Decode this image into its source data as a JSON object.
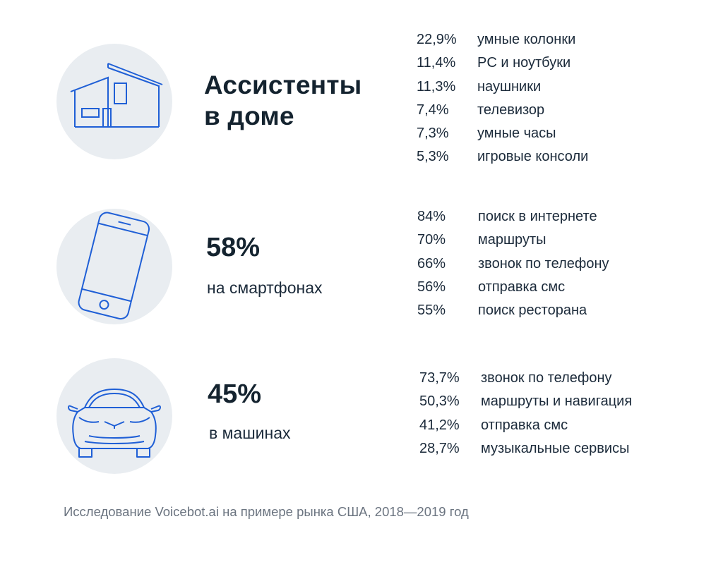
{
  "home": {
    "title_line1": "Ассистенты",
    "title_line2": "в доме",
    "icon": "house-icon",
    "stats": [
      {
        "pct": "22,9%",
        "label": "умные колонки"
      },
      {
        "pct": "11,4%",
        "label": "PC и ноутбуки"
      },
      {
        "pct": "11,3%",
        "label": "наушники"
      },
      {
        "pct": "7,4%",
        "label": "телевизор"
      },
      {
        "pct": "7,3%",
        "label": "умные часы"
      },
      {
        "pct": "5,3%",
        "label": "игровые консоли"
      }
    ]
  },
  "smartphones": {
    "value": "58%",
    "label": "на смартфонах",
    "icon": "smartphone-icon",
    "stats": [
      {
        "pct": "84%",
        "label": "поиск в интернете"
      },
      {
        "pct": "70%",
        "label": "маршруты"
      },
      {
        "pct": "66%",
        "label": "звонок по телефону"
      },
      {
        "pct": "56%",
        "label": "отправка смс"
      },
      {
        "pct": "55%",
        "label": "поиск ресторана"
      }
    ]
  },
  "cars": {
    "value": "45%",
    "label": "в машинах",
    "icon": "car-icon",
    "stats": [
      {
        "pct": "73,7%",
        "label": "звонок по телефону"
      },
      {
        "pct": "50,3%",
        "label": "маршруты и навигация"
      },
      {
        "pct": "41,2%",
        "label": "отправка смс"
      },
      {
        "pct": "28,7%",
        "label": "музыкальные сервисы"
      }
    ]
  },
  "colors": {
    "icon_stroke": "#1f5fd6",
    "circle_bg": "#e9edf1",
    "text_dark": "#14232f",
    "footnote": "#6b7480"
  },
  "footnote": "Исследование Voicebot.ai на примере рынка США, 2018—2019 год"
}
